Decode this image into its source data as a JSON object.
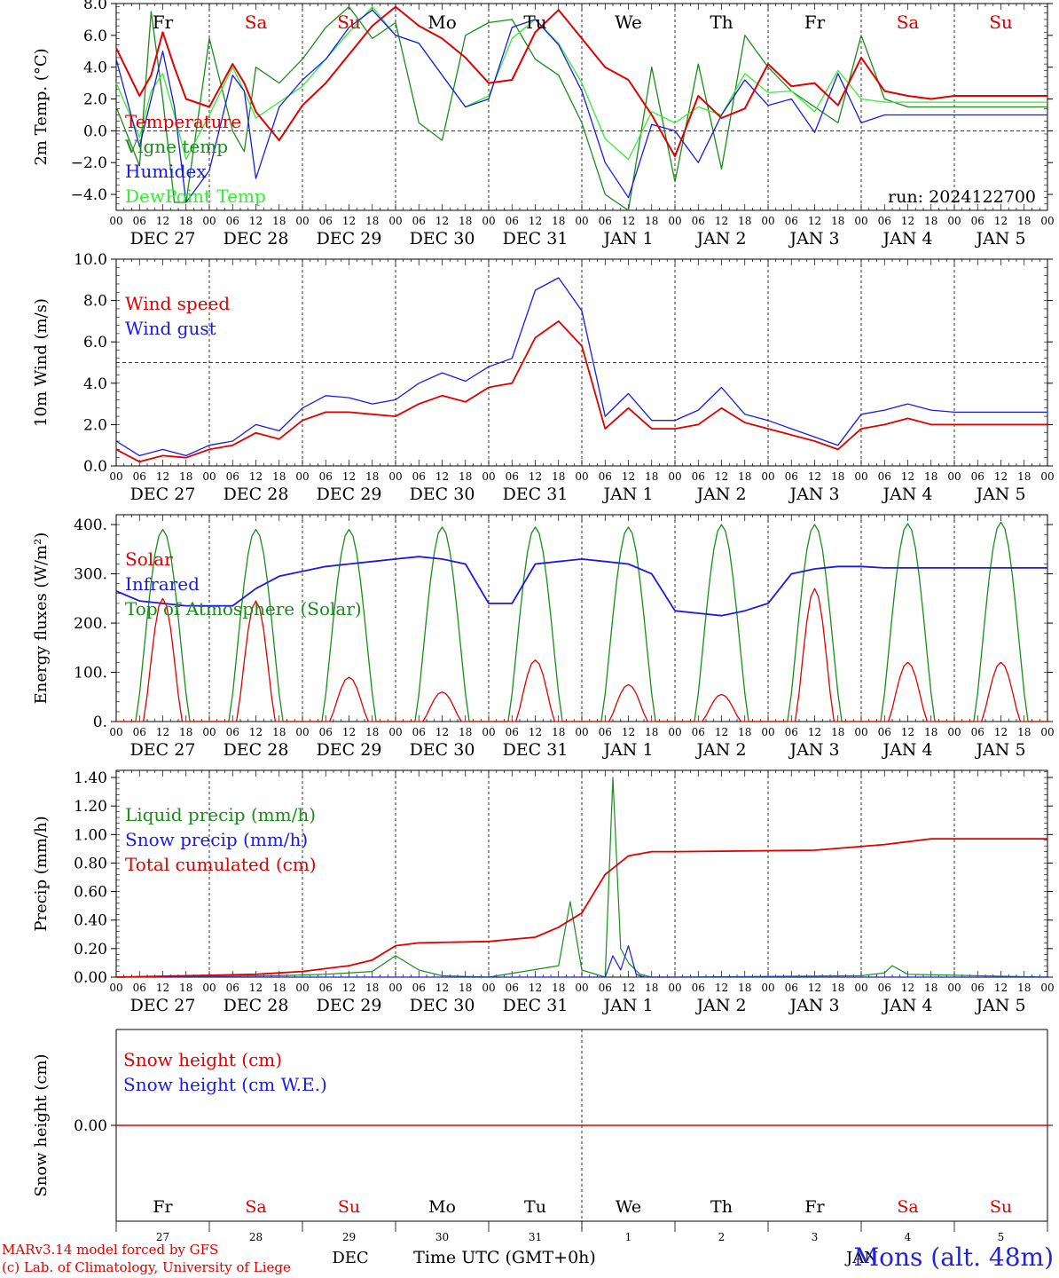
{
  "meta": {
    "run_label": "run: 2024122700",
    "station": "Mons (alt. 48m)",
    "credit_line1": "MARv3.14 model forced by GFS",
    "credit_line2": "(c) Lab. of Climatology, University of Liege",
    "time_axis_title": "Time UTC (GMT+0h)",
    "month_dec": "DEC",
    "month_jan": "JAN"
  },
  "colors": {
    "red": "#e00000",
    "green": "#1a8c1a",
    "blue": "#1a1ae6",
    "lightgreen": "#33ee33",
    "weekend": "#e00000",
    "weekday": "#000000"
  },
  "time_axis": {
    "hour_ticks": [
      "00",
      "06",
      "12",
      "18"
    ],
    "date_labels": [
      "DEC 27",
      "DEC 28",
      "DEC 29",
      "DEC 30",
      "DEC 31",
      "JAN  1",
      "JAN  2",
      "JAN  3",
      "JAN  4",
      "JAN  5"
    ],
    "weekdays": [
      "Fr",
      "Sa",
      "Su",
      "Mo",
      "Tu",
      "We",
      "Th",
      "Fr",
      "Sa",
      "Su"
    ],
    "weekend_flags": [
      false,
      true,
      true,
      false,
      false,
      false,
      false,
      false,
      true,
      true
    ],
    "day_numbers": [
      "27",
      "28",
      "29",
      "30",
      "31",
      "1",
      "2",
      "3",
      "4",
      "5"
    ]
  },
  "chart_data": [
    {
      "type": "line",
      "ylabel": "2m Temp. (°C)",
      "ylim": [
        -5,
        8
      ],
      "yticks": [
        "8.0",
        "6.0",
        "4.0",
        "2.0",
        "0.0",
        "−2.0",
        "−4.0"
      ],
      "ytick_values": [
        8,
        6,
        4,
        2,
        0,
        -2,
        -4
      ],
      "reference_line": 0,
      "x_unit": "hours since 27 Dec 00 UTC",
      "series": [
        {
          "name": "Temperature",
          "color": "red",
          "x": [
            0,
            6,
            9,
            12,
            15,
            18,
            24,
            30,
            33,
            36,
            42,
            48,
            54,
            60,
            66,
            72,
            78,
            84,
            90,
            96,
            102,
            108,
            114,
            120,
            126,
            132,
            138,
            144,
            150,
            156,
            162,
            168,
            174,
            180,
            186,
            192,
            198,
            204,
            210,
            216,
            222,
            228,
            234,
            240
          ],
          "values": [
            5.2,
            2.2,
            3.5,
            6.2,
            4,
            2,
            1.5,
            4.2,
            3,
            1.2,
            -0.6,
            1.6,
            3,
            4.8,
            6.6,
            7.8,
            6.6,
            5.8,
            4.6,
            3,
            3.2,
            6.2,
            7.6,
            5.8,
            4,
            3.2,
            1,
            -1.6,
            2.2,
            0.8,
            1.4,
            4.2,
            2.8,
            3,
            1.6,
            4.6,
            2.5,
            2.2,
            2,
            2.2,
            2.2,
            2.2,
            2.2,
            2.2
          ]
        },
        {
          "name": "Vigne temp",
          "color": "green",
          "x": [
            0,
            6,
            9,
            12,
            15,
            18,
            24,
            30,
            33,
            36,
            42,
            48,
            54,
            60,
            66,
            72,
            78,
            84,
            90,
            96,
            102,
            108,
            114,
            120,
            126,
            132,
            138,
            144,
            150,
            156,
            162,
            168,
            174,
            180,
            186,
            192,
            198,
            204,
            210,
            216,
            222,
            228,
            234,
            240
          ],
          "values": [
            1.5,
            -2.2,
            7.5,
            2,
            -4.5,
            -4.5,
            5.8,
            0,
            -1.3,
            4,
            3,
            4.5,
            6.5,
            7.8,
            5.8,
            6.8,
            0.5,
            -0.6,
            6,
            6.8,
            7,
            4.5,
            3.5,
            0.5,
            -4,
            -5,
            4,
            -3.2,
            4.2,
            -2.4,
            6,
            4,
            2.5,
            1.5,
            0.5,
            6,
            2,
            1.5,
            1.5,
            1.5,
            1.5,
            1.5,
            1.5,
            1.5
          ]
        },
        {
          "name": "Humidex",
          "color": "blue",
          "x": [
            0,
            6,
            9,
            12,
            15,
            18,
            24,
            30,
            33,
            36,
            42,
            48,
            54,
            60,
            66,
            72,
            78,
            84,
            90,
            96,
            102,
            108,
            114,
            120,
            126,
            132,
            138,
            144,
            150,
            156,
            162,
            168,
            174,
            180,
            186,
            192,
            198,
            204,
            210,
            216,
            222,
            228,
            234,
            240
          ],
          "values": [
            4.5,
            -1,
            2,
            5,
            1.5,
            -4.5,
            -2.5,
            3.5,
            2.5,
            -3,
            1.5,
            3.2,
            4.5,
            6.5,
            7.6,
            6,
            5.5,
            3.5,
            1.5,
            2,
            6.5,
            7,
            5.4,
            2.5,
            -2,
            -4.2,
            0.4,
            0,
            -2,
            1,
            3.2,
            1.6,
            2,
            -0.1,
            3.6,
            0.5,
            1,
            1,
            1,
            1,
            1,
            1,
            1,
            1
          ]
        },
        {
          "name": "DewPoint Temp",
          "color": "lightgreen",
          "x": [
            0,
            6,
            9,
            12,
            15,
            18,
            24,
            30,
            33,
            36,
            42,
            48,
            54,
            60,
            66,
            72,
            78,
            84,
            90,
            96,
            102,
            108,
            114,
            120,
            126,
            132,
            138,
            144,
            150,
            156,
            162,
            168,
            174,
            180,
            186,
            192,
            198,
            204,
            210,
            216,
            222,
            228,
            234,
            240
          ],
          "values": [
            3,
            -0.4,
            2.5,
            3.6,
            1,
            -1.8,
            1,
            4,
            2.5,
            0.8,
            1.8,
            2.8,
            4.5,
            6.2,
            7.8,
            6,
            5.5,
            3.5,
            1.5,
            2.2,
            5.8,
            7,
            5.5,
            3,
            -0.5,
            -1.8,
            1.2,
            0.5,
            1.5,
            1,
            3.6,
            2.4,
            2.5,
            1.2,
            3.8,
            2,
            1.8,
            1.8,
            1.8,
            1.8,
            1.8,
            1.8,
            1.8,
            1.8
          ]
        }
      ]
    },
    {
      "type": "line",
      "ylabel": "10m Wind (m/s)",
      "ylim": [
        0,
        10
      ],
      "yticks": [
        "10.0",
        "8.0",
        "6.0",
        "4.0",
        "2.0",
        "0.0"
      ],
      "ytick_values": [
        10,
        8,
        6,
        4,
        2,
        0
      ],
      "reference_line": 5,
      "x_unit": "hours since 27 Dec 00 UTC",
      "series": [
        {
          "name": "Wind speed",
          "color": "red",
          "x": [
            0,
            6,
            12,
            18,
            24,
            30,
            36,
            42,
            48,
            54,
            60,
            66,
            72,
            78,
            84,
            90,
            96,
            102,
            108,
            114,
            120,
            126,
            132,
            138,
            144,
            150,
            156,
            162,
            168,
            174,
            180,
            186,
            192,
            198,
            204,
            210,
            216,
            222,
            228,
            234,
            240
          ],
          "values": [
            0.8,
            0.2,
            0.5,
            0.4,
            0.8,
            1,
            1.6,
            1.3,
            2.2,
            2.6,
            2.6,
            2.5,
            2.4,
            3,
            3.4,
            3.1,
            3.8,
            4,
            6.2,
            7,
            5.8,
            1.8,
            2.8,
            1.8,
            1.8,
            2,
            2.8,
            2.1,
            1.8,
            1.5,
            1.2,
            0.8,
            1.8,
            2,
            2.3,
            2,
            2,
            2,
            2,
            2,
            2
          ]
        },
        {
          "name": "Wind gust",
          "color": "blue",
          "x": [
            0,
            6,
            12,
            18,
            24,
            30,
            36,
            42,
            48,
            54,
            60,
            66,
            72,
            78,
            84,
            90,
            96,
            102,
            108,
            114,
            120,
            126,
            132,
            138,
            144,
            150,
            156,
            162,
            168,
            174,
            180,
            186,
            192,
            198,
            204,
            210,
            216,
            222,
            228,
            234,
            240
          ],
          "values": [
            1.2,
            0.5,
            0.8,
            0.5,
            1,
            1.2,
            2,
            1.7,
            2.8,
            3.4,
            3.3,
            3,
            3.2,
            4,
            4.5,
            4.1,
            4.8,
            5.2,
            8.5,
            9.1,
            7.5,
            2.4,
            3.5,
            2.2,
            2.2,
            2.7,
            3.8,
            2.5,
            2.2,
            1.8,
            1.4,
            1,
            2.5,
            2.7,
            3,
            2.7,
            2.6,
            2.6,
            2.6,
            2.6,
            2.6
          ]
        }
      ]
    },
    {
      "type": "line",
      "ylabel": "Energy fluxes (W/m²)",
      "ylim": [
        0,
        420
      ],
      "yticks": [
        "400.",
        "300.",
        "200.",
        "100.",
        "0."
      ],
      "ytick_values": [
        400,
        300,
        200,
        100,
        0
      ],
      "x_unit": "hours since 27 Dec 00 UTC",
      "series": [
        {
          "name": "Solar",
          "color": "red",
          "daily_peak_hour": 12,
          "daily_peaks": [
            250,
            245,
            90,
            60,
            125,
            75,
            55,
            270,
            120,
            120
          ]
        },
        {
          "name": "Infrared",
          "color": "blue",
          "x": [
            0,
            6,
            12,
            18,
            24,
            30,
            36,
            42,
            48,
            54,
            60,
            66,
            72,
            78,
            84,
            90,
            96,
            102,
            108,
            114,
            120,
            126,
            132,
            138,
            144,
            150,
            156,
            162,
            168,
            174,
            180,
            186,
            192,
            198,
            204,
            210,
            216,
            222,
            228,
            234,
            240
          ],
          "values": [
            265,
            245,
            240,
            235,
            235,
            235,
            270,
            295,
            305,
            315,
            320,
            325,
            330,
            335,
            330,
            320,
            240,
            240,
            320,
            325,
            330,
            325,
            320,
            300,
            225,
            220,
            215,
            225,
            240,
            300,
            310,
            315,
            315,
            312,
            312,
            312,
            312,
            312,
            312,
            312,
            312
          ]
        },
        {
          "name": "Top of Atmosphere (Solar)",
          "color": "green",
          "daily_peak_hour": 12,
          "daily_peaks": [
            390,
            390,
            390,
            395,
            395,
            395,
            400,
            400,
            402,
            405
          ]
        }
      ]
    },
    {
      "type": "line",
      "ylabel": "Precip (mm/h)",
      "ylim": [
        0,
        1.45
      ],
      "yticks": [
        "1.40",
        "1.20",
        "1.00",
        "0.80",
        "0.60",
        "0.40",
        "0.20",
        "0.00"
      ],
      "ytick_values": [
        1.4,
        1.2,
        1.0,
        0.8,
        0.6,
        0.4,
        0.2,
        0
      ],
      "x_unit": "hours since 27 Dec 00 UTC",
      "series": [
        {
          "name": "Liquid precip (mm/h)",
          "color": "green",
          "x": [
            0,
            42,
            54,
            66,
            72,
            78,
            84,
            96,
            114,
            117,
            120,
            126,
            128,
            130,
            132,
            135,
            138,
            144,
            192,
            198,
            200,
            204,
            240
          ],
          "values": [
            0,
            0.01,
            0.02,
            0.04,
            0.15,
            0.05,
            0.01,
            0,
            0.08,
            0.53,
            0.05,
            0,
            1.4,
            0.2,
            0.1,
            0.02,
            0,
            0,
            0.01,
            0.03,
            0.08,
            0.02,
            0
          ]
        },
        {
          "name": "Snow precip (mm/h)",
          "color": "blue",
          "x": [
            0,
            126,
            128,
            130,
            132,
            134,
            136,
            240
          ],
          "values": [
            0,
            0,
            0.15,
            0.05,
            0.22,
            0.02,
            0,
            0
          ]
        },
        {
          "name": "Total cumulated (cm)",
          "color": "red",
          "x": [
            0,
            36,
            48,
            60,
            66,
            72,
            78,
            96,
            108,
            114,
            120,
            126,
            132,
            138,
            144,
            180,
            198,
            210,
            240
          ],
          "values": [
            0,
            0.02,
            0.04,
            0.08,
            0.12,
            0.22,
            0.24,
            0.25,
            0.28,
            0.35,
            0.45,
            0.72,
            0.85,
            0.88,
            0.88,
            0.89,
            0.93,
            0.97,
            0.97
          ]
        }
      ]
    },
    {
      "type": "line",
      "ylabel": "Snow height (cm)",
      "ylim": [
        -1,
        1
      ],
      "yticks": [
        "0.00"
      ],
      "ytick_values": [
        0
      ],
      "x_unit": "hours since 27 Dec 00 UTC",
      "series": [
        {
          "name": "Snow height (cm)",
          "color": "red",
          "x": [
            0,
            240
          ],
          "values": [
            0,
            0
          ]
        },
        {
          "name": "Snow height (cm W.E.)",
          "color": "blue",
          "x": [],
          "values": []
        }
      ]
    }
  ]
}
